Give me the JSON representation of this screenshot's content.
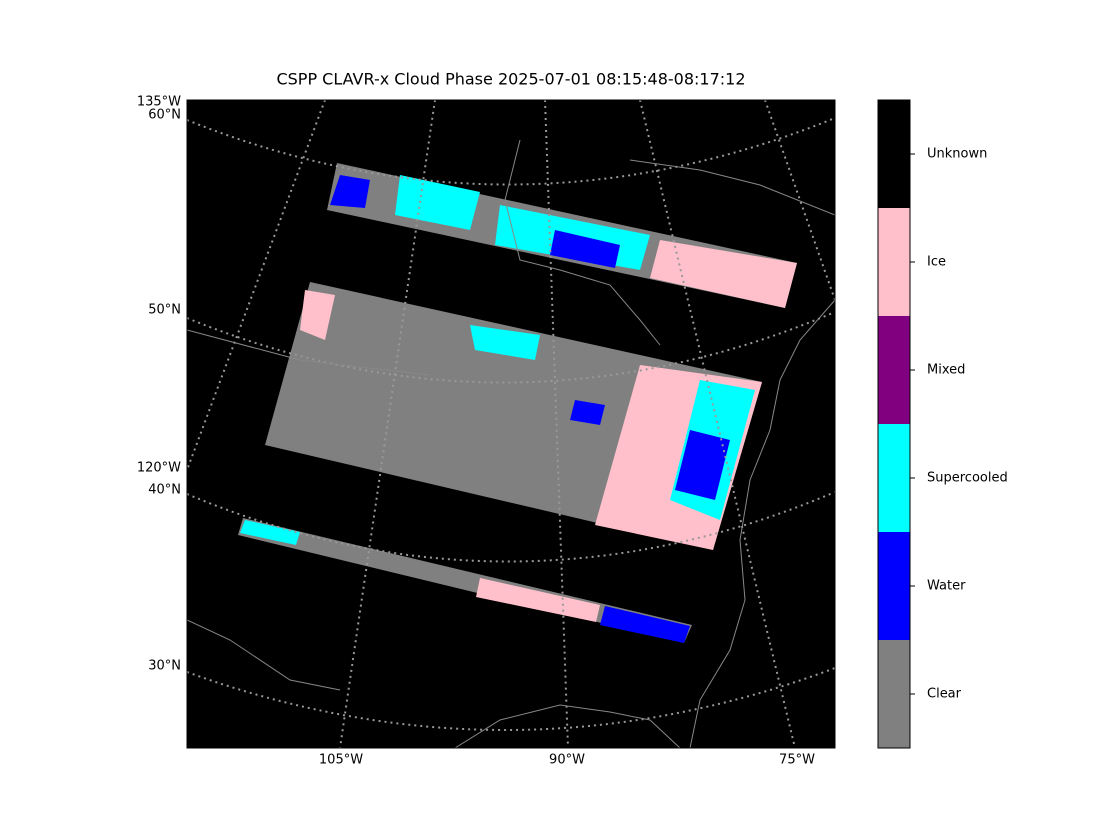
{
  "title": "CSPP CLAVR-x Cloud Phase 2025-07-01 08:15:48-08:17:12",
  "map": {
    "left_labels": [
      "135°W",
      "60°N",
      "50°N",
      "120°W",
      "40°N",
      "30°N"
    ],
    "bottom_labels": [
      "105°W",
      "90°W",
      "75°W"
    ]
  },
  "colorbar": {
    "categories": [
      "Clear",
      "Water",
      "Supercooled",
      "Mixed",
      "Ice",
      "Unknown"
    ],
    "colors": [
      "#808080",
      "#0000ff",
      "#00ffff",
      "#800080",
      "#ffc0cb",
      "#000000"
    ]
  }
}
